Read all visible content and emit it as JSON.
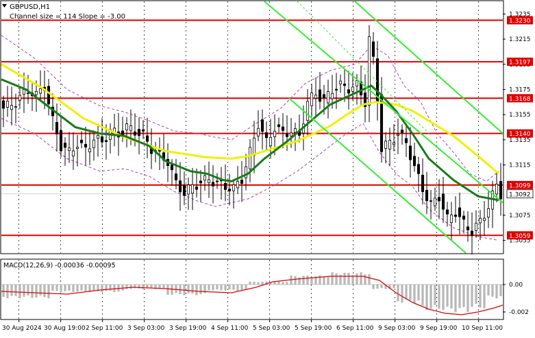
{
  "chart_data": [
    {
      "type": "candlestick",
      "symbol": "GBPUSD,H1",
      "subtitle": "Channel size = 114 Slope = -3.00",
      "ylim": [
        1.3045,
        1.3245
      ],
      "y_ticks": [
        "1.3235",
        "1.3215",
        "1.3195",
        "1.3175",
        "1.3155",
        "1.3135",
        "1.3115",
        "1.3075",
        "1.3055"
      ],
      "x_ticks": [
        "30 Aug 2024",
        "30 Aug 19:00",
        "2 Sep 11:00",
        "3 Sep 03:00",
        "3 Sep 19:00",
        "4 Sep 11:00",
        "5 Sep 03:00",
        "5 Sep 19:00",
        "6 Sep 11:00",
        "9 Sep 03:00",
        "9 Sep 19:00",
        "10 Sep 11:00"
      ],
      "levels": [
        {
          "value": 1.323,
          "label": "1.3230",
          "color": "#e00000"
        },
        {
          "value": 1.3197,
          "label": "1.3197",
          "color": "#e00000"
        },
        {
          "value": 1.3168,
          "label": "1.3168",
          "color": "#e00000"
        },
        {
          "value": 1.314,
          "label": "1.3140",
          "color": "#e00000"
        },
        {
          "value": 1.3099,
          "label": "1.3099",
          "color": "#e00000"
        },
        {
          "value": 1.3059,
          "label": "1.3059",
          "color": "#e00000"
        }
      ],
      "current_price": {
        "value": 1.3092,
        "label": "1.3092"
      },
      "close_path": [
        [
          0,
          1.316
        ],
        [
          3,
          1.3165
        ],
        [
          6,
          1.3175
        ],
        [
          8,
          1.317
        ],
        [
          10,
          1.3178
        ],
        [
          12,
          1.315
        ],
        [
          14,
          1.313
        ],
        [
          16,
          1.3125
        ],
        [
          18,
          1.3132
        ],
        [
          20,
          1.3127
        ],
        [
          22,
          1.3136
        ],
        [
          24,
          1.3133
        ],
        [
          26,
          1.3142
        ],
        [
          28,
          1.3139
        ],
        [
          30,
          1.3145
        ],
        [
          32,
          1.3142
        ],
        [
          34,
          1.3138
        ],
        [
          36,
          1.3128
        ],
        [
          38,
          1.3122
        ],
        [
          40,
          1.3118
        ],
        [
          42,
          1.31
        ],
        [
          44,
          1.3093
        ],
        [
          46,
          1.3098
        ],
        [
          48,
          1.3101
        ],
        [
          50,
          1.3104
        ],
        [
          52,
          1.31
        ],
        [
          54,
          1.3098
        ],
        [
          56,
          1.3096
        ],
        [
          58,
          1.3104
        ],
        [
          60,
          1.3125
        ],
        [
          62,
          1.3148
        ],
        [
          64,
          1.3133
        ],
        [
          66,
          1.3145
        ],
        [
          68,
          1.314
        ],
        [
          70,
          1.3142
        ],
        [
          72,
          1.3138
        ],
        [
          74,
          1.3165
        ],
        [
          76,
          1.3172
        ],
        [
          78,
          1.3166
        ],
        [
          80,
          1.3175
        ],
        [
          82,
          1.3178
        ],
        [
          84,
          1.3176
        ],
        [
          86,
          1.3178
        ],
        [
          88,
          1.3165
        ],
        [
          89,
          1.3215
        ],
        [
          90,
          1.3198
        ],
        [
          91,
          1.3168
        ],
        [
          92,
          1.3128
        ],
        [
          94,
          1.3133
        ],
        [
          96,
          1.314
        ],
        [
          98,
          1.3133
        ],
        [
          100,
          1.3113
        ],
        [
          102,
          1.3096
        ],
        [
          104,
          1.3083
        ],
        [
          106,
          1.309
        ],
        [
          108,
          1.3072
        ],
        [
          110,
          1.3078
        ],
        [
          112,
          1.3068
        ],
        [
          114,
          1.3062
        ],
        [
          116,
          1.307
        ],
        [
          118,
          1.3082
        ],
        [
          120,
          1.3099
        ],
        [
          121,
          1.3092
        ]
      ],
      "series": [
        {
          "name": "",
          "color": "#f0f000",
          "width": 3,
          "points": [
            [
              0,
              1.3195
            ],
            [
              10,
              1.3176
            ],
            [
              20,
              1.3152
            ],
            [
              30,
              1.3137
            ],
            [
              40,
              1.3126
            ],
            [
              50,
              1.3121
            ],
            [
              56,
              1.312
            ],
            [
              60,
              1.3122
            ],
            [
              66,
              1.3128
            ],
            [
              72,
              1.3134
            ],
            [
              80,
              1.3146
            ],
            [
              84,
              1.3155
            ],
            [
              88,
              1.3163
            ],
            [
              91,
              1.3165
            ],
            [
              96,
              1.3163
            ],
            [
              100,
              1.3158
            ],
            [
              104,
              1.315
            ],
            [
              110,
              1.3138
            ],
            [
              116,
              1.3122
            ],
            [
              121,
              1.3108
            ]
          ]
        },
        {
          "name": "",
          "color": "#1a7a1a",
          "width": 3,
          "points": [
            [
              0,
              1.3183
            ],
            [
              6,
              1.3175
            ],
            [
              12,
              1.316
            ],
            [
              18,
              1.3145
            ],
            [
              24,
              1.314
            ],
            [
              30,
              1.3138
            ],
            [
              36,
              1.313
            ],
            [
              40,
              1.3118
            ],
            [
              46,
              1.311
            ],
            [
              50,
              1.3108
            ],
            [
              54,
              1.3103
            ],
            [
              56,
              1.3102
            ],
            [
              60,
              1.3108
            ],
            [
              64,
              1.312
            ],
            [
              70,
              1.3135
            ],
            [
              76,
              1.3152
            ],
            [
              80,
              1.3163
            ],
            [
              84,
              1.3169
            ],
            [
              88,
              1.3175
            ],
            [
              90,
              1.3178
            ],
            [
              92,
              1.3172
            ],
            [
              96,
              1.3158
            ],
            [
              100,
              1.314
            ],
            [
              104,
              1.312
            ],
            [
              110,
              1.3103
            ],
            [
              116,
              1.309
            ],
            [
              121,
              1.3087
            ]
          ]
        },
        {
          "name": "",
          "color": "#b040b0",
          "width": 1,
          "dashed": true,
          "points": [
            [
              0,
              1.3218
            ],
            [
              8,
              1.32
            ],
            [
              16,
              1.3175
            ],
            [
              24,
              1.3162
            ],
            [
              30,
              1.3157
            ],
            [
              36,
              1.315
            ],
            [
              42,
              1.3142
            ],
            [
              48,
              1.314
            ],
            [
              52,
              1.3137
            ],
            [
              56,
              1.3135
            ],
            [
              62,
              1.3148
            ],
            [
              68,
              1.316
            ],
            [
              74,
              1.318
            ],
            [
              80,
              1.319
            ],
            [
              86,
              1.3195
            ],
            [
              90,
              1.321
            ],
            [
              94,
              1.3202
            ],
            [
              98,
              1.3178
            ],
            [
              102,
              1.3165
            ],
            [
              106,
              1.314
            ],
            [
              110,
              1.3125
            ],
            [
              114,
              1.3108
            ],
            [
              118,
              1.3102
            ],
            [
              121,
              1.311
            ]
          ]
        },
        {
          "name": "",
          "color": "#b040b0",
          "width": 1,
          "dashed": true,
          "points": [
            [
              0,
              1.3152
            ],
            [
              8,
              1.314
            ],
            [
              16,
              1.312
            ],
            [
              24,
              1.311
            ],
            [
              30,
              1.3112
            ],
            [
              36,
              1.3106
            ],
            [
              42,
              1.3094
            ],
            [
              48,
              1.3086
            ],
            [
              52,
              1.3082
            ],
            [
              56,
              1.3085
            ],
            [
              60,
              1.3088
            ],
            [
              66,
              1.3098
            ],
            [
              72,
              1.311
            ],
            [
              78,
              1.3125
            ],
            [
              84,
              1.314
            ],
            [
              88,
              1.3148
            ],
            [
              92,
              1.3125
            ],
            [
              96,
              1.3108
            ],
            [
              100,
              1.3098
            ],
            [
              104,
              1.308
            ],
            [
              110,
              1.3065
            ],
            [
              116,
              1.3058
            ],
            [
              121,
              1.3055
            ]
          ]
        }
      ],
      "channel_lines": [
        {
          "color": "#33ee33",
          "dashed": false,
          "from": [
            64,
            1.3245
          ],
          "to": [
            122,
            1.3085
          ]
        },
        {
          "color": "#33ee33",
          "dashed": false,
          "from": [
            70,
            1.3168
          ],
          "to": [
            113,
            1.3045
          ]
        },
        {
          "color": "#33ee33",
          "dashed": false,
          "from": [
            86,
            1.3245
          ],
          "to": [
            122,
            1.314
          ]
        },
        {
          "color": "#33ee33",
          "dashed": true,
          "from": [
            72,
            1.3245
          ],
          "to": [
            104,
            1.314
          ]
        }
      ]
    },
    {
      "type": "histogram",
      "title": "MACD(12,26,9) -0.00036 -0.00095",
      "ylim": [
        -0.0025,
        0.0018
      ],
      "y_ticks": [
        "0.00",
        "-0.002"
      ],
      "bars": [
        {
          "from": 0,
          "to": 12,
          "value": -0.0009
        },
        {
          "from": 12,
          "to": 30,
          "value": -0.0005
        },
        {
          "from": 30,
          "to": 40,
          "value": -0.0003
        },
        {
          "from": 40,
          "to": 50,
          "value": -0.0007
        },
        {
          "from": 50,
          "to": 60,
          "value": -0.0004
        },
        {
          "from": 60,
          "to": 70,
          "value": 0.0002
        },
        {
          "from": 70,
          "to": 80,
          "value": 0.0006
        },
        {
          "from": 80,
          "to": 90,
          "value": 0.0008
        },
        {
          "from": 90,
          "to": 96,
          "value": -0.0003
        },
        {
          "from": 96,
          "to": 102,
          "value": -0.0012
        },
        {
          "from": 102,
          "to": 108,
          "value": -0.0017
        },
        {
          "from": 108,
          "to": 114,
          "value": -0.0018
        },
        {
          "from": 114,
          "to": 118,
          "value": -0.0016
        },
        {
          "from": 118,
          "to": 122,
          "value": -0.0009
        }
      ],
      "signal": {
        "color": "#e00000",
        "points": [
          [
            0,
            -0.0005
          ],
          [
            8,
            -0.0006
          ],
          [
            16,
            -0.0007
          ],
          [
            24,
            -0.0004
          ],
          [
            32,
            -0.0002
          ],
          [
            40,
            -0.0003
          ],
          [
            48,
            -0.0005
          ],
          [
            56,
            -0.0006
          ],
          [
            62,
            -0.0002
          ],
          [
            66,
            0.0002
          ],
          [
            72,
            0.0004
          ],
          [
            80,
            0.0006
          ],
          [
            88,
            0.0006
          ],
          [
            92,
            0.0003
          ],
          [
            96,
            -0.0006
          ],
          [
            100,
            -0.0013
          ],
          [
            104,
            -0.0018
          ],
          [
            108,
            -0.0021
          ],
          [
            112,
            -0.0022
          ],
          [
            116,
            -0.002
          ],
          [
            120,
            -0.0017
          ],
          [
            122,
            -0.0015
          ]
        ]
      }
    }
  ]
}
